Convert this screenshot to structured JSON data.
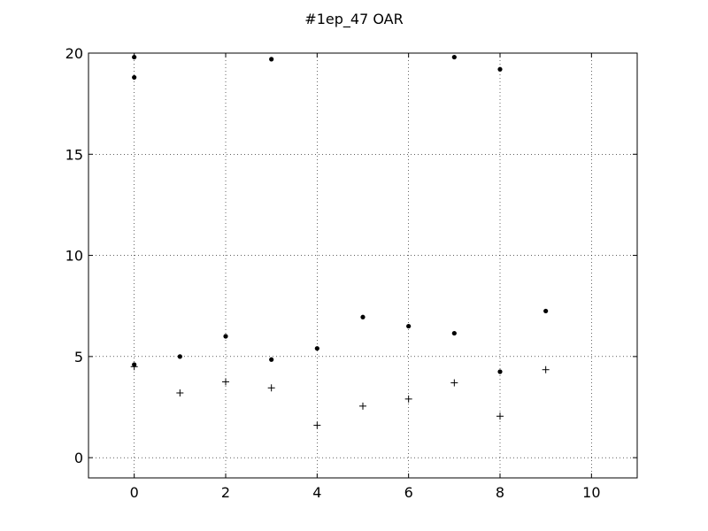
{
  "chart_data": {
    "type": "scatter",
    "title": "#1ep_47 OAR",
    "xlabel": "",
    "ylabel": "",
    "xlim": [
      -1,
      11
    ],
    "ylim": [
      -1,
      20
    ],
    "xticks": [
      0,
      2,
      4,
      6,
      8,
      10
    ],
    "yticks": [
      0,
      5,
      10,
      15,
      20
    ],
    "grid": true,
    "series": [
      {
        "marker": "dot",
        "color": "#000000",
        "points": [
          [
            0,
            19.8
          ],
          [
            0,
            18.8
          ],
          [
            0,
            4.6
          ],
          [
            1,
            5.0
          ],
          [
            2,
            6.0
          ],
          [
            3,
            19.7
          ],
          [
            3,
            4.85
          ],
          [
            4,
            5.4
          ],
          [
            5,
            6.95
          ],
          [
            6,
            6.5
          ],
          [
            7,
            19.8
          ],
          [
            7,
            6.15
          ],
          [
            8,
            19.2
          ],
          [
            8,
            4.25
          ],
          [
            9,
            7.25
          ]
        ]
      },
      {
        "marker": "plus",
        "color": "#000000",
        "points": [
          [
            0,
            4.5
          ],
          [
            1,
            3.2
          ],
          [
            2,
            3.75
          ],
          [
            3,
            3.45
          ],
          [
            4,
            1.6
          ],
          [
            5,
            2.55
          ],
          [
            6,
            2.9
          ],
          [
            7,
            3.7
          ],
          [
            8,
            2.05
          ],
          [
            9,
            4.35
          ]
        ]
      }
    ]
  }
}
